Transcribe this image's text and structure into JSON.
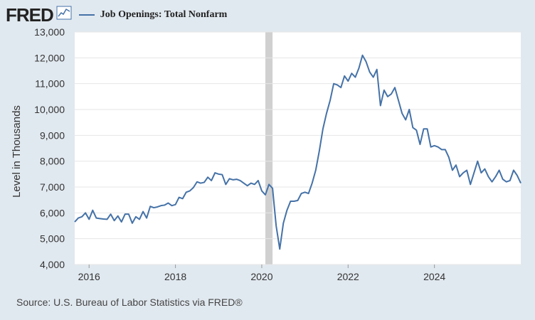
{
  "header": {
    "logo": "FRED",
    "legend_label": "Job Openings: Total Nonfarm",
    "series_color": "#4572a7"
  },
  "footer": {
    "source": "Source: U.S. Bureau of Labor Statistics via FRED®"
  },
  "chart_data": {
    "type": "line",
    "title": "",
    "xlabel": "",
    "ylabel": "Level in Thousands",
    "ylim": [
      4000,
      13000
    ],
    "xlim": [
      "2015-09",
      "2025-10"
    ],
    "y_ticks": [
      "4,000",
      "5,000",
      "6,000",
      "7,000",
      "8,000",
      "9,000",
      "10,000",
      "11,000",
      "12,000",
      "13,000"
    ],
    "x_ticks": [
      "2016",
      "2018",
      "2020",
      "2022",
      "2024"
    ],
    "grid": "horizontal",
    "recession_shading": [
      {
        "start": "2020-02",
        "end": "2020-04"
      }
    ],
    "series": [
      {
        "name": "Job Openings: Total Nonfarm",
        "color": "#4572a7",
        "points": [
          [
            "2015-09",
            5650
          ],
          [
            "2015-10",
            5800
          ],
          [
            "2015-11",
            5850
          ],
          [
            "2015-12",
            6000
          ],
          [
            "2016-01",
            5750
          ],
          [
            "2016-02",
            6100
          ],
          [
            "2016-03",
            5800
          ],
          [
            "2016-04",
            5780
          ],
          [
            "2016-05",
            5760
          ],
          [
            "2016-06",
            5750
          ],
          [
            "2016-07",
            5950
          ],
          [
            "2016-08",
            5700
          ],
          [
            "2016-09",
            5880
          ],
          [
            "2016-10",
            5650
          ],
          [
            "2016-11",
            5950
          ],
          [
            "2016-12",
            5950
          ],
          [
            "2017-01",
            5600
          ],
          [
            "2017-02",
            5850
          ],
          [
            "2017-03",
            5750
          ],
          [
            "2017-04",
            6050
          ],
          [
            "2017-05",
            5800
          ],
          [
            "2017-06",
            6250
          ],
          [
            "2017-07",
            6200
          ],
          [
            "2017-08",
            6230
          ],
          [
            "2017-09",
            6280
          ],
          [
            "2017-10",
            6300
          ],
          [
            "2017-11",
            6380
          ],
          [
            "2017-12",
            6280
          ],
          [
            "2018-01",
            6320
          ],
          [
            "2018-02",
            6600
          ],
          [
            "2018-03",
            6550
          ],
          [
            "2018-04",
            6800
          ],
          [
            "2018-05",
            6850
          ],
          [
            "2018-06",
            6980
          ],
          [
            "2018-07",
            7200
          ],
          [
            "2018-08",
            7150
          ],
          [
            "2018-09",
            7180
          ],
          [
            "2018-10",
            7380
          ],
          [
            "2018-11",
            7250
          ],
          [
            "2018-12",
            7550
          ],
          [
            "2019-01",
            7500
          ],
          [
            "2019-02",
            7480
          ],
          [
            "2019-03",
            7100
          ],
          [
            "2019-04",
            7320
          ],
          [
            "2019-05",
            7280
          ],
          [
            "2019-06",
            7300
          ],
          [
            "2019-07",
            7250
          ],
          [
            "2019-08",
            7150
          ],
          [
            "2019-09",
            7050
          ],
          [
            "2019-10",
            7150
          ],
          [
            "2019-11",
            7100
          ],
          [
            "2019-12",
            7250
          ],
          [
            "2020-01",
            6850
          ],
          [
            "2020-02",
            6700
          ],
          [
            "2020-03",
            7100
          ],
          [
            "2020-04",
            6950
          ],
          [
            "2020-05",
            5500
          ],
          [
            "2020-06",
            4600
          ],
          [
            "2020-07",
            5600
          ],
          [
            "2020-08",
            6100
          ],
          [
            "2020-09",
            6450
          ],
          [
            "2020-10",
            6450
          ],
          [
            "2020-11",
            6480
          ],
          [
            "2020-12",
            6750
          ],
          [
            "2021-01",
            6800
          ],
          [
            "2021-02",
            6750
          ],
          [
            "2021-03",
            7150
          ],
          [
            "2021-04",
            7650
          ],
          [
            "2021-05",
            8400
          ],
          [
            "2021-06",
            9250
          ],
          [
            "2021-07",
            9850
          ],
          [
            "2021-08",
            10350
          ],
          [
            "2021-09",
            11000
          ],
          [
            "2021-10",
            10950
          ],
          [
            "2021-11",
            10850
          ],
          [
            "2021-12",
            11300
          ],
          [
            "2022-01",
            11100
          ],
          [
            "2022-02",
            11400
          ],
          [
            "2022-03",
            11250
          ],
          [
            "2022-04",
            11600
          ],
          [
            "2022-05",
            12100
          ],
          [
            "2022-06",
            11850
          ],
          [
            "2022-07",
            11450
          ],
          [
            "2022-08",
            11250
          ],
          [
            "2022-09",
            11550
          ],
          [
            "2022-10",
            10150
          ],
          [
            "2022-11",
            10750
          ],
          [
            "2022-12",
            10500
          ],
          [
            "2023-01",
            10600
          ],
          [
            "2023-02",
            10850
          ],
          [
            "2023-03",
            10350
          ],
          [
            "2023-04",
            9850
          ],
          [
            "2023-05",
            9600
          ],
          [
            "2023-06",
            10000
          ],
          [
            "2023-07",
            9300
          ],
          [
            "2023-08",
            9200
          ],
          [
            "2023-09",
            8650
          ],
          [
            "2023-10",
            9250
          ],
          [
            "2023-11",
            9250
          ],
          [
            "2023-12",
            8550
          ],
          [
            "2024-01",
            8600
          ],
          [
            "2024-02",
            8550
          ],
          [
            "2024-03",
            8450
          ],
          [
            "2024-04",
            8450
          ],
          [
            "2024-05",
            8150
          ],
          [
            "2024-06",
            7650
          ],
          [
            "2024-07",
            7850
          ],
          [
            "2024-08",
            7400
          ],
          [
            "2024-09",
            7550
          ],
          [
            "2024-10",
            7650
          ],
          [
            "2024-11",
            7100
          ],
          [
            "2024-12",
            7550
          ],
          [
            "2025-01",
            8000
          ],
          [
            "2025-02",
            7550
          ],
          [
            "2025-03",
            7700
          ],
          [
            "2025-04",
            7400
          ],
          [
            "2025-05",
            7200
          ],
          [
            "2025-06",
            7400
          ],
          [
            "2025-07",
            7650
          ],
          [
            "2025-08",
            7300
          ],
          [
            "2025-09",
            7200
          ],
          [
            "2025-10",
            7250
          ],
          [
            "2025-11",
            7650
          ],
          [
            "2025-12",
            7450
          ],
          [
            "2026-01",
            7150
          ]
        ]
      }
    ]
  }
}
